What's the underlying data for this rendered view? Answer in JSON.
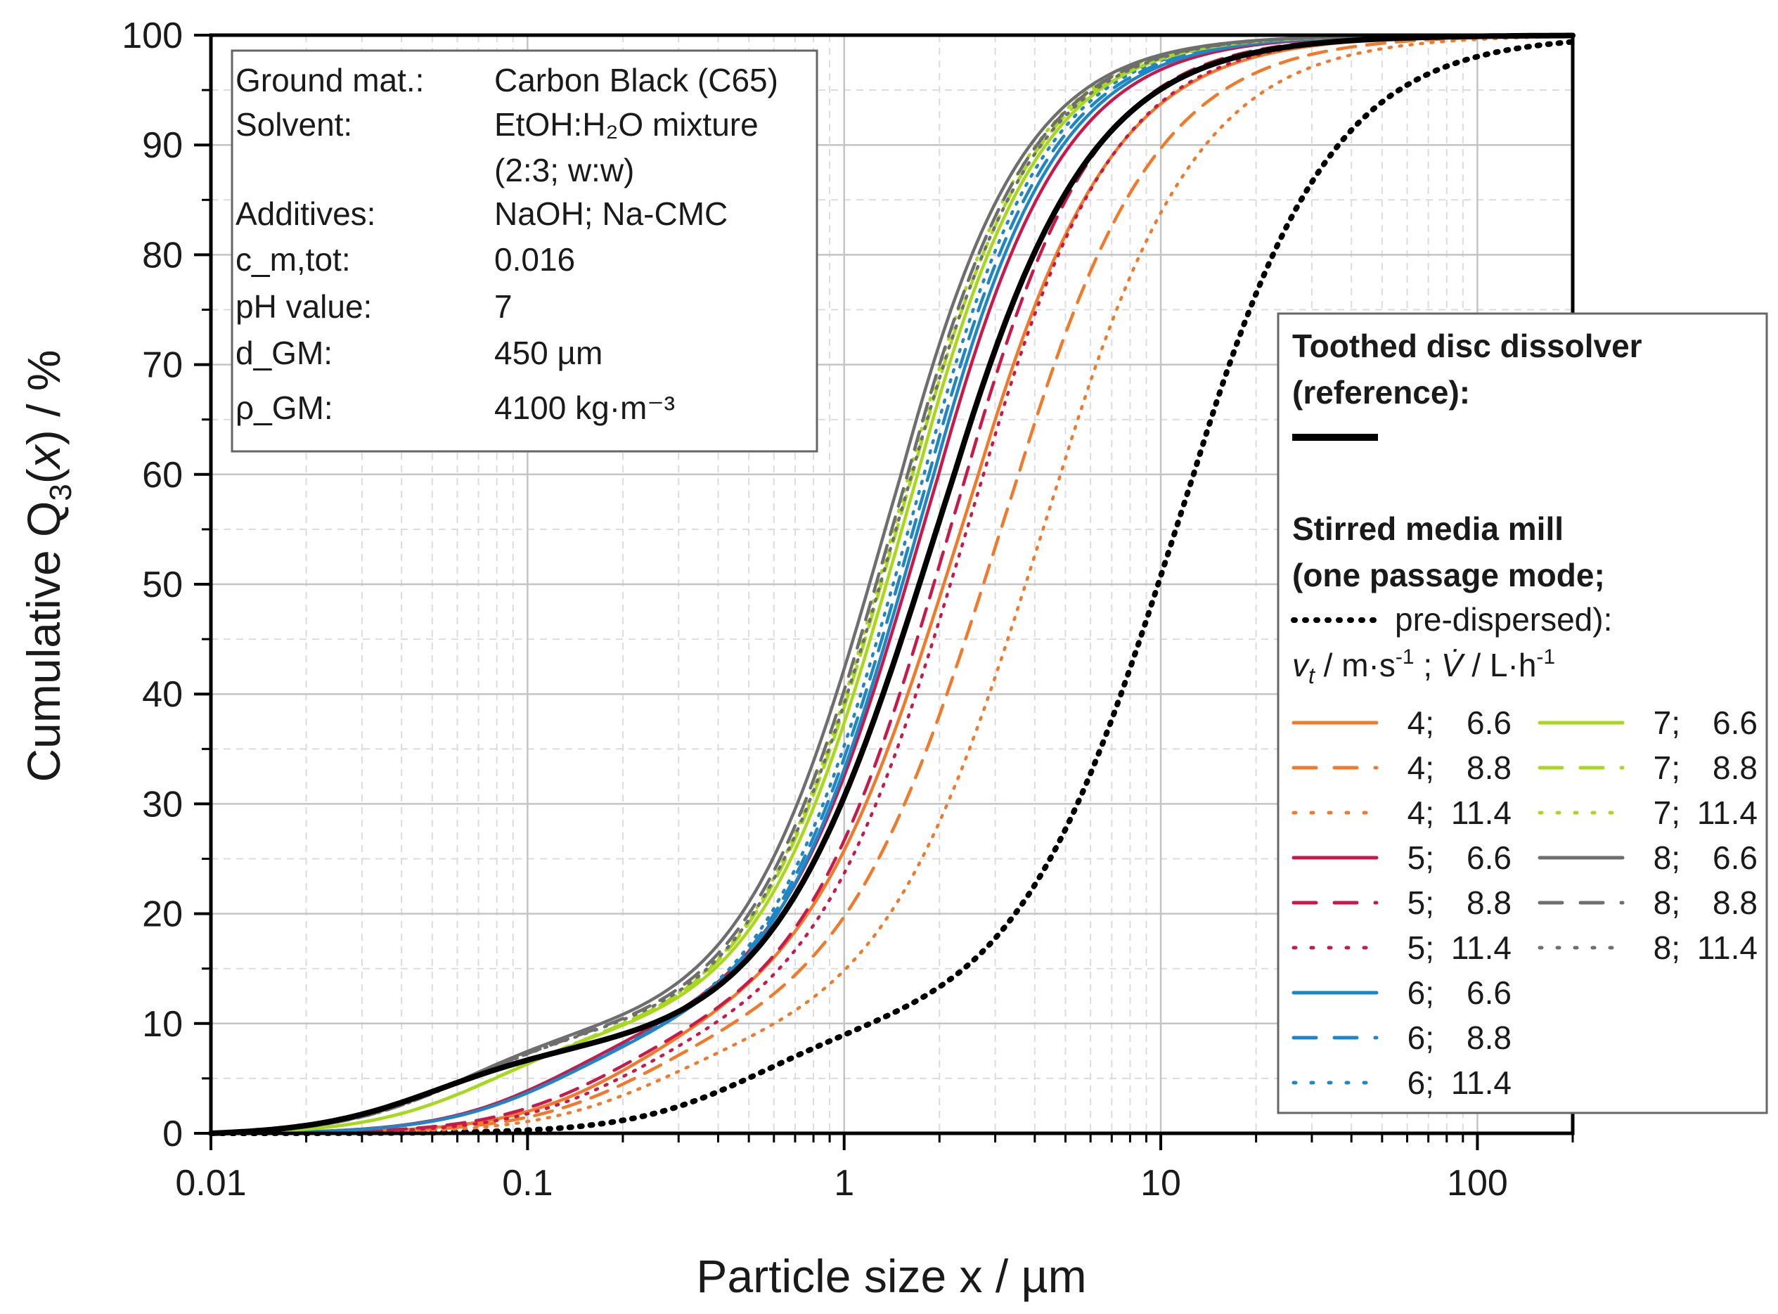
{
  "chart_data": {
    "type": "line",
    "xlabel": "Particle size x / µm",
    "ylabel": {
      "prefix": "Cumulative Q",
      "subscript": "3",
      "mid": "(",
      "var": "x",
      "suffix": ") / %"
    },
    "x_scale": "log",
    "xlim": [
      0.01,
      200
    ],
    "ylim": [
      0,
      100
    ],
    "x_ticks": [
      0.01,
      0.1,
      1,
      10,
      100
    ],
    "x_tick_labels": [
      "0.01",
      "0.1",
      "1",
      "10",
      "100"
    ],
    "y_ticks": [
      0,
      10,
      20,
      30,
      40,
      50,
      60,
      70,
      80,
      90,
      100
    ],
    "y_tick_labels": [
      "0",
      "10",
      "20",
      "30",
      "40",
      "50",
      "60",
      "70",
      "80",
      "90",
      "100"
    ],
    "grid": true,
    "legend_position": "right",
    "info_box": [
      {
        "label": "Ground mat.:",
        "value": "Carbon Black (C65)"
      },
      {
        "label": "Solvent:",
        "value": "EtOH:H₂O mixture"
      },
      {
        "label": "",
        "value": "(2:3; w:w)"
      },
      {
        "label": "Additives:",
        "value": "NaOH; Na-CMC"
      },
      {
        "label": "c_m,tot:",
        "value": "0.016"
      },
      {
        "label": "pH value:",
        "value": "7"
      },
      {
        "label": "d_GM:",
        "value": "450 µm"
      },
      {
        "label": "ρ_GM:",
        "value": "4100 kg·m⁻³"
      }
    ],
    "legend": {
      "reference_title": [
        "Toothed disc dissolver",
        "(reference):"
      ],
      "mill_title": [
        "Stirred media mill",
        "(one passage mode;"
      ],
      "predispersed_label": "pre-dispersed):",
      "param_header": "v_t / m·s⁻¹ ; V̇ / L·h⁻¹"
    },
    "series": [
      {
        "name": "reference",
        "legend_label": "",
        "color": "#000000",
        "dash": "solid",
        "width": 8,
        "d50": 1.75,
        "shape": 1.0,
        "pivot": 0.1,
        "lowscale": 0.076
      },
      {
        "name": "pre-dispersed",
        "legend_label": "pre-dispersed):",
        "color": "#000000",
        "dash": "dotted",
        "width": 8,
        "d50": 10.0,
        "shape": 1.0,
        "pivot": 1.0,
        "lowscale": 0.09
      },
      {
        "name": "4; 6.6",
        "vt": "4;",
        "vdot": "6.6",
        "color": "#f07a2a",
        "dash": "solid",
        "d50": 2.1,
        "shape": 1.02,
        "pivot": 0.4,
        "lowscale": 0.085
      },
      {
        "name": "4; 8.8",
        "vt": "4;",
        "vdot": "8.8",
        "color": "#f07a2a",
        "dash": "dashed",
        "d50": 2.8,
        "shape": 1.0,
        "pivot": 0.45,
        "lowscale": 0.08
      },
      {
        "name": "4; 11.4",
        "vt": "4;",
        "vdot": "11.4",
        "color": "#f07a2a",
        "dash": "dotted",
        "d50": 3.8,
        "shape": 1.0,
        "pivot": 0.5,
        "lowscale": 0.075
      },
      {
        "name": "5; 6.6",
        "vt": "5;",
        "vdot": "6.6",
        "color": "#c8194b",
        "dash": "solid",
        "d50": 1.6,
        "shape": 1.1,
        "pivot": 0.25,
        "lowscale": 0.09
      },
      {
        "name": "5; 8.8",
        "vt": "5;",
        "vdot": "8.8",
        "color": "#c8194b",
        "dash": "dashed",
        "d50": 1.95,
        "shape": 1.08,
        "pivot": 0.35,
        "lowscale": 0.085
      },
      {
        "name": "5; 11.4",
        "vt": "5;",
        "vdot": "11.4",
        "color": "#c8194b",
        "dash": "dotted",
        "d50": 2.2,
        "shape": 1.06,
        "pivot": 0.4,
        "lowscale": 0.08
      },
      {
        "name": "6; 6.6",
        "vt": "6;",
        "vdot": "6.6",
        "color": "#1f86c6",
        "dash": "solid",
        "d50": 1.55,
        "shape": 1.12,
        "pivot": 0.25,
        "lowscale": 0.085
      },
      {
        "name": "6; 8.8",
        "vt": "6;",
        "vdot": "8.8",
        "color": "#1f86c6",
        "dash": "dashed",
        "d50": 1.5,
        "shape": 1.13,
        "pivot": 0.25,
        "lowscale": 0.085
      },
      {
        "name": "6; 11.4",
        "vt": "6;",
        "vdot": "11.4",
        "color": "#1f86c6",
        "dash": "dotted",
        "d50": 1.45,
        "shape": 1.14,
        "pivot": 0.25,
        "lowscale": 0.085
      },
      {
        "name": "7; 6.6",
        "vt": "7;",
        "vdot": "6.6",
        "color": "#a8d81c",
        "dash": "solid",
        "d50": 1.38,
        "shape": 1.13,
        "pivot": 0.15,
        "lowscale": 0.09
      },
      {
        "name": "7; 8.8",
        "vt": "7;",
        "vdot": "8.8",
        "color": "#a8d81c",
        "dash": "dashed",
        "d50": 1.33,
        "shape": 1.13,
        "pivot": 0.15,
        "lowscale": 0.09
      },
      {
        "name": "7; 11.4",
        "vt": "7;",
        "vdot": "11.4",
        "color": "#a8d81c",
        "dash": "dotted",
        "d50": 1.3,
        "shape": 1.14,
        "pivot": 0.15,
        "lowscale": 0.09
      },
      {
        "name": "8; 6.6",
        "vt": "8;",
        "vdot": "6.6",
        "color": "#6e6e6e",
        "dash": "solid",
        "d50": 1.22,
        "shape": 1.12,
        "pivot": 0.12,
        "lowscale": 0.092
      },
      {
        "name": "8; 8.8",
        "vt": "8;",
        "vdot": "8.8",
        "color": "#6e6e6e",
        "dash": "dashed",
        "d50": 1.28,
        "shape": 1.12,
        "pivot": 0.12,
        "lowscale": 0.09
      },
      {
        "name": "8; 11.4",
        "vt": "8;",
        "vdot": "11.4",
        "color": "#6e6e6e",
        "dash": "dotted",
        "d50": 1.32,
        "shape": 1.12,
        "pivot": 0.12,
        "lowscale": 0.09
      }
    ]
  }
}
